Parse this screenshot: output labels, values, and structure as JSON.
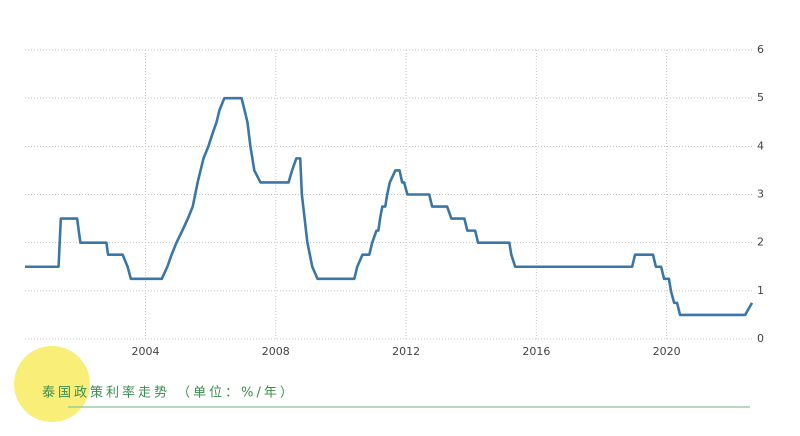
{
  "chart_data": {
    "type": "line",
    "caption": "泰国政策利率走势 （单位：%/年）",
    "x": [
      2000.3,
      2001.33,
      2001.4,
      2001.9,
      2002.0,
      2002.8,
      2002.85,
      2003.3,
      2003.45,
      2003.55,
      2004.5,
      2004.67,
      2004.8,
      2004.95,
      2005.13,
      2005.3,
      2005.45,
      2005.6,
      2005.78,
      2005.93,
      2006.05,
      2006.18,
      2006.27,
      2006.42,
      2006.95,
      2007.04,
      2007.13,
      2007.22,
      2007.34,
      2007.53,
      2008.39,
      2008.5,
      2008.63,
      2008.75,
      2008.8,
      2008.97,
      2009.12,
      2009.28,
      2010.41,
      2010.5,
      2010.66,
      2010.87,
      2010.96,
      2011.09,
      2011.15,
      2011.2,
      2011.27,
      2011.36,
      2011.42,
      2011.5,
      2011.67,
      2011.8,
      2011.88,
      2011.94,
      2012.04,
      2012.71,
      2012.8,
      2013.26,
      2013.39,
      2013.79,
      2013.88,
      2014.12,
      2014.21,
      2015.17,
      2015.23,
      2015.35,
      2018.94,
      2019.03,
      2019.58,
      2019.67,
      2019.83,
      2019.92,
      2020.07,
      2020.13,
      2020.23,
      2020.32,
      2020.41,
      2022.41,
      2022.62
    ],
    "series": [
      {
        "color": "#3b77a6",
        "values": [
          1.5,
          1.5,
          2.5,
          2.5,
          2.0,
          2.0,
          1.75,
          1.75,
          1.5,
          1.25,
          1.25,
          1.5,
          1.75,
          2.0,
          2.25,
          2.5,
          2.75,
          3.25,
          3.75,
          4.0,
          4.25,
          4.5,
          4.75,
          5.0,
          5.0,
          4.75,
          4.5,
          4.0,
          3.5,
          3.25,
          3.25,
          3.5,
          3.75,
          3.75,
          3.0,
          2.0,
          1.5,
          1.25,
          1.25,
          1.5,
          1.75,
          1.75,
          2.0,
          2.25,
          2.25,
          2.5,
          2.75,
          2.75,
          3.0,
          3.25,
          3.5,
          3.5,
          3.25,
          3.25,
          3.0,
          3.0,
          2.75,
          2.75,
          2.5,
          2.5,
          2.25,
          2.25,
          2.0,
          2.0,
          1.75,
          1.5,
          1.5,
          1.75,
          1.75,
          1.5,
          1.5,
          1.25,
          1.25,
          1.0,
          0.75,
          0.75,
          0.5,
          0.5,
          0.75
        ]
      }
    ],
    "xlim": [
      2000.3,
      2022.62
    ],
    "xticks": [
      2004,
      2008,
      2012,
      2016,
      2020
    ],
    "ylim": [
      0,
      6
    ],
    "yticks": [
      0,
      1,
      2,
      3,
      4,
      5,
      6
    ],
    "grid": true
  }
}
